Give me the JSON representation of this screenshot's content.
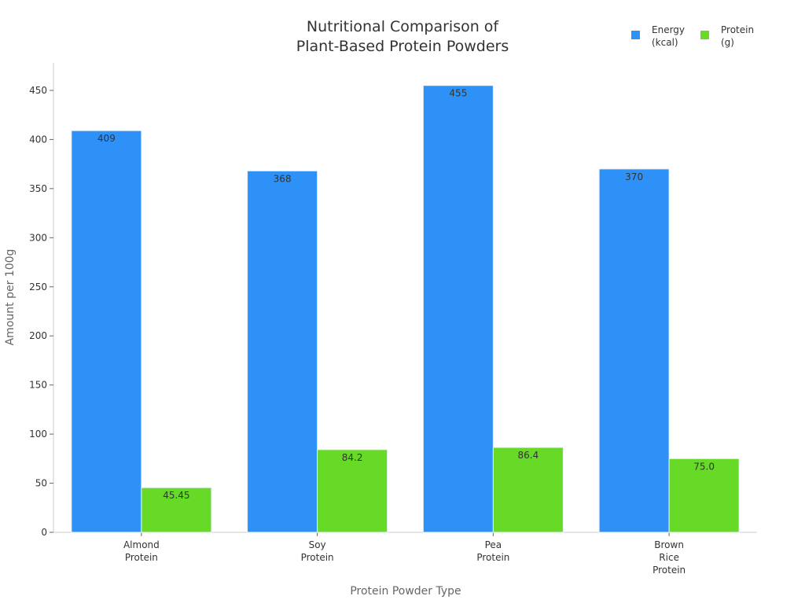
{
  "chart_data": {
    "type": "bar",
    "title": "Nutritional Comparison of\nPlant-Based Protein Powders",
    "xlabel": "Protein Powder Type",
    "ylabel": "Amount per 100g",
    "categories": [
      "Almond\nProtein",
      "Soy\nProtein",
      "Pea\nProtein",
      "Brown\nRice\nProtein"
    ],
    "series": [
      {
        "name": "Energy\n(kcal)",
        "color": "#2E91F8",
        "values": [
          409,
          368,
          455,
          370
        ],
        "labels": [
          "409",
          "368",
          "455",
          "370"
        ]
      },
      {
        "name": "Protein\n(g)",
        "color": "#66DA26",
        "values": [
          45.45,
          84.2,
          86.4,
          75.0
        ],
        "labels": [
          "45.45",
          "84.2",
          "86.4",
          "75.0"
        ]
      }
    ],
    "yticks": [
      0,
      50,
      100,
      150,
      200,
      250,
      300,
      350,
      400,
      450
    ],
    "ylim": [
      0,
      478
    ],
    "grid": false,
    "legend_position": "top-right"
  }
}
